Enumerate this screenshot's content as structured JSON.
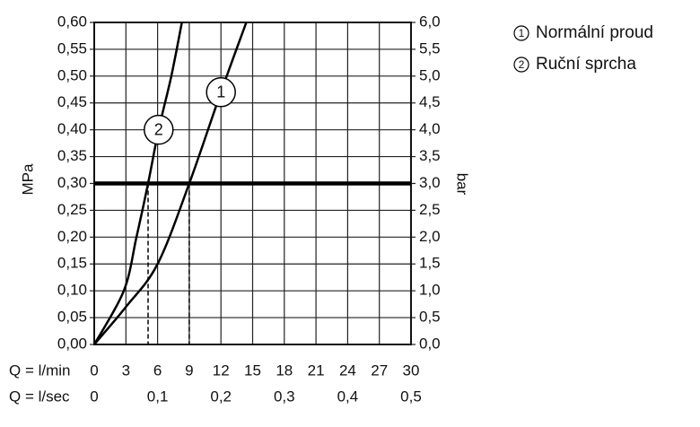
{
  "chart_data": {
    "type": "line",
    "xlabel": "Q = l/min",
    "x2label": "Q = l/sec",
    "ylabel": "MPa",
    "y2label": "bar",
    "xlim": [
      0,
      30
    ],
    "xticks": [
      0,
      3,
      6,
      9,
      12,
      15,
      18,
      21,
      24,
      27,
      30
    ],
    "x2lim": [
      0,
      0.5
    ],
    "x2ticks": [
      0,
      {
        "value": 0.1,
        "label": "0,1"
      },
      {
        "value": 0.2,
        "label": "0,2"
      },
      {
        "value": 0.3,
        "label": "0,3"
      },
      {
        "value": 0.4,
        "label": "0,4"
      },
      {
        "value": 0.5,
        "label": "0,5"
      }
    ],
    "ylim": [
      0,
      0.6
    ],
    "yticks": [
      {
        "value": 0,
        "label": "0,00"
      },
      {
        "value": 0.05,
        "label": "0,05"
      },
      {
        "value": 0.1,
        "label": "0,10"
      },
      {
        "value": 0.15,
        "label": "0,15"
      },
      {
        "value": 0.2,
        "label": "0,20"
      },
      {
        "value": 0.25,
        "label": "0,25"
      },
      {
        "value": 0.3,
        "label": "0,30"
      },
      {
        "value": 0.35,
        "label": "0,35"
      },
      {
        "value": 0.4,
        "label": "0,40"
      },
      {
        "value": 0.45,
        "label": "0,45"
      },
      {
        "value": 0.5,
        "label": "0,50"
      },
      {
        "value": 0.55,
        "label": "0,55"
      },
      {
        "value": 0.6,
        "label": "0,60"
      }
    ],
    "y2lim": [
      0,
      6
    ],
    "y2ticks": [
      {
        "value": 0,
        "label": "0,0"
      },
      {
        "value": 0.5,
        "label": "0,5"
      },
      {
        "value": 1,
        "label": "1,0"
      },
      {
        "value": 1.5,
        "label": "1,5"
      },
      {
        "value": 2,
        "label": "2,0"
      },
      {
        "value": 2.5,
        "label": "2,5"
      },
      {
        "value": 3,
        "label": "3,0"
      },
      {
        "value": 3.5,
        "label": "3,5"
      },
      {
        "value": 4,
        "label": "4,0"
      },
      {
        "value": 4.5,
        "label": "4,5"
      },
      {
        "value": 5,
        "label": "5,0"
      },
      {
        "value": 5.5,
        "label": "5,5"
      },
      {
        "value": 6,
        "label": "6,0"
      }
    ],
    "grid": true,
    "reference_line": 0.3,
    "series": [
      {
        "name": "Normální proud",
        "marker": "1",
        "color": "#000000",
        "x": [
          0,
          3,
          6,
          9,
          12,
          14.4
        ],
        "values": [
          0,
          0.07,
          0.15,
          0.3,
          0.47,
          0.6
        ]
      },
      {
        "name": "Ruční sprcha",
        "marker": "2",
        "color": "#000000",
        "x": [
          0,
          2.8,
          4,
          5.1,
          6.1,
          7.3,
          8.3
        ],
        "values": [
          0,
          0.1,
          0.2,
          0.3,
          0.4,
          0.5,
          0.6
        ]
      }
    ]
  }
}
